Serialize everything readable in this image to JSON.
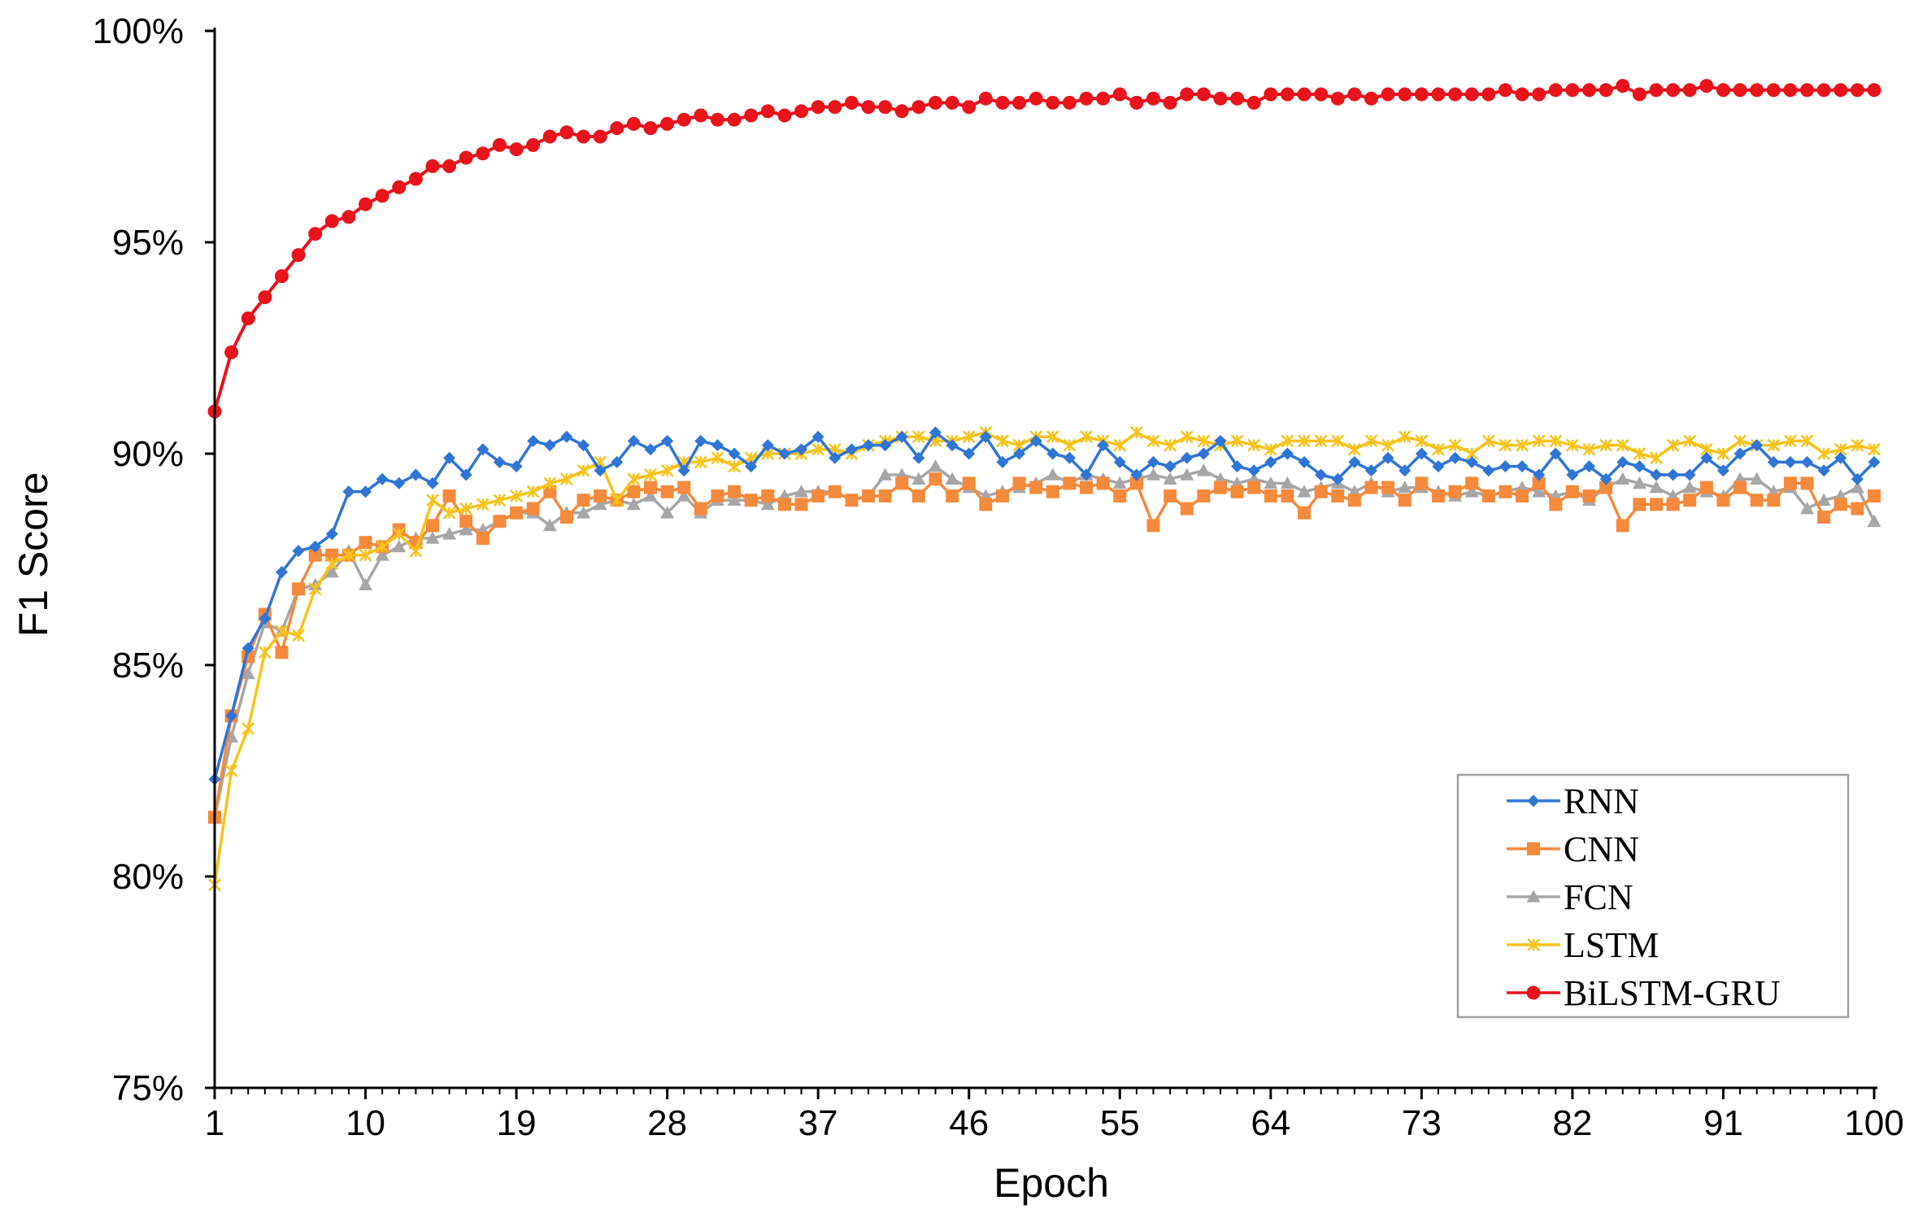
{
  "chart_data": {
    "type": "line",
    "xlabel": "Epoch",
    "ylabel": "F1 Score",
    "xlim": [
      1,
      100
    ],
    "ylim": [
      75,
      100
    ],
    "x_ticks": [
      "1",
      "10",
      "19",
      "28",
      "37",
      "46",
      "55",
      "64",
      "73",
      "82",
      "91",
      "100"
    ],
    "y_ticks": [
      "75%",
      "80%",
      "85%",
      "90%",
      "95%",
      "100%"
    ],
    "grid": false,
    "legend_position": "bottom-right",
    "colors": {
      "RNN": "#2f75d6",
      "CNN": "#f58a3c",
      "FCN": "#a6a6a6",
      "LSTM": "#f7c31b",
      "BiLSTM-GRU": "#e8131b"
    },
    "series": [
      {
        "name": "RNN",
        "marker": "diamond",
        "values": [
          82.3,
          83.8,
          85.4,
          86.1,
          87.2,
          87.7,
          87.8,
          88.1,
          89.1,
          89.1,
          89.4,
          89.3,
          89.5,
          89.3,
          89.9,
          89.5,
          90.1,
          89.8,
          89.7,
          90.3,
          90.2,
          90.4,
          90.2,
          89.6,
          89.8,
          90.3,
          90.1,
          90.3,
          89.6,
          90.3,
          90.2,
          90.0,
          89.7,
          90.2,
          90.0,
          90.1,
          90.4,
          89.9,
          90.1,
          90.2,
          90.2,
          90.4,
          89.9,
          90.5,
          90.2,
          90.0,
          90.4,
          89.8,
          90.0,
          90.3,
          90.0,
          89.9,
          89.5,
          90.2,
          89.8,
          89.5,
          89.8,
          89.7,
          89.9,
          90.0,
          90.3,
          89.7,
          89.6,
          89.8,
          90.0,
          89.8,
          89.5,
          89.4,
          89.8,
          89.6,
          89.9,
          89.6,
          90.0,
          89.7,
          89.9,
          89.8,
          89.6,
          89.7,
          89.7,
          89.5,
          90.0,
          89.5,
          89.7,
          89.4,
          89.8,
          89.7,
          89.5,
          89.5,
          89.5,
          89.9,
          89.6,
          90.0,
          90.2,
          89.8,
          89.8,
          89.8,
          89.6,
          89.9,
          89.4,
          89.8
        ]
      },
      {
        "name": "CNN",
        "marker": "square",
        "values": [
          81.4,
          83.8,
          85.2,
          86.2,
          85.3,
          86.8,
          87.6,
          87.6,
          87.6,
          87.9,
          87.8,
          88.2,
          87.9,
          88.3,
          89.0,
          88.4,
          88.0,
          88.4,
          88.6,
          88.7,
          89.1,
          88.5,
          88.9,
          89.0,
          88.9,
          89.1,
          89.2,
          89.1,
          89.2,
          88.7,
          89.0,
          89.1,
          88.9,
          89.0,
          88.8,
          88.8,
          89.0,
          89.1,
          88.9,
          89.0,
          89.0,
          89.3,
          89.0,
          89.4,
          89.0,
          89.3,
          88.8,
          89.0,
          89.3,
          89.2,
          89.1,
          89.3,
          89.2,
          89.3,
          89.0,
          89.3,
          88.3,
          89.0,
          88.7,
          89.0,
          89.2,
          89.1,
          89.2,
          89.0,
          89.0,
          88.6,
          89.1,
          89.0,
          88.9,
          89.2,
          89.2,
          88.9,
          89.3,
          89.0,
          89.1,
          89.3,
          89.0,
          89.1,
          89.0,
          89.3,
          88.8,
          89.1,
          89.0,
          89.2,
          88.3,
          88.8,
          88.8,
          88.8,
          88.9,
          89.2,
          88.9,
          89.2,
          88.9,
          88.9,
          89.3,
          89.3,
          88.5,
          88.8,
          88.7,
          89.0
        ]
      },
      {
        "name": "FCN",
        "marker": "triangle",
        "values": [
          81.4,
          83.3,
          84.8,
          86.0,
          85.8,
          86.8,
          86.9,
          87.2,
          87.7,
          86.9,
          87.6,
          87.8,
          88.0,
          88.0,
          88.1,
          88.2,
          88.2,
          88.4,
          88.6,
          88.6,
          88.3,
          88.6,
          88.6,
          88.8,
          88.9,
          88.8,
          89.0,
          88.6,
          89.0,
          88.6,
          88.9,
          88.9,
          88.9,
          88.8,
          89.0,
          89.1,
          89.1,
          89.1,
          88.9,
          89.0,
          89.5,
          89.5,
          89.4,
          89.7,
          89.4,
          89.2,
          89.0,
          89.1,
          89.2,
          89.3,
          89.5,
          89.3,
          89.5,
          89.4,
          89.3,
          89.4,
          89.5,
          89.4,
          89.5,
          89.6,
          89.4,
          89.3,
          89.4,
          89.3,
          89.3,
          89.1,
          89.2,
          89.3,
          89.1,
          89.3,
          89.1,
          89.2,
          89.2,
          89.1,
          89.0,
          89.1,
          89.0,
          89.1,
          89.2,
          89.1,
          89.0,
          89.1,
          88.9,
          89.2,
          89.4,
          89.3,
          89.2,
          89.0,
          89.2,
          89.1,
          89.0,
          89.4,
          89.4,
          89.1,
          89.2,
          88.7,
          88.9,
          89.0,
          89.2,
          88.4
        ]
      },
      {
        "name": "LSTM",
        "marker": "x",
        "values": [
          79.8,
          82.5,
          83.5,
          85.3,
          85.8,
          85.7,
          86.8,
          87.4,
          87.6,
          87.6,
          87.8,
          88.1,
          87.7,
          88.9,
          88.6,
          88.7,
          88.8,
          88.9,
          89.0,
          89.1,
          89.3,
          89.4,
          89.6,
          89.8,
          88.9,
          89.4,
          89.5,
          89.6,
          89.8,
          89.8,
          89.9,
          89.7,
          89.9,
          90.0,
          90.0,
          90.0,
          90.1,
          90.1,
          90.0,
          90.2,
          90.3,
          90.4,
          90.4,
          90.3,
          90.3,
          90.4,
          90.5,
          90.3,
          90.2,
          90.4,
          90.4,
          90.2,
          90.4,
          90.3,
          90.2,
          90.5,
          90.3,
          90.2,
          90.4,
          90.3,
          90.2,
          90.3,
          90.2,
          90.1,
          90.3,
          90.3,
          90.3,
          90.3,
          90.1,
          90.3,
          90.2,
          90.4,
          90.3,
          90.1,
          90.2,
          90.0,
          90.3,
          90.2,
          90.2,
          90.3,
          90.3,
          90.2,
          90.1,
          90.2,
          90.2,
          90.0,
          89.9,
          90.2,
          90.3,
          90.1,
          90.0,
          90.3,
          90.2,
          90.2,
          90.3,
          90.3,
          90.0,
          90.1,
          90.2,
          90.1
        ]
      },
      {
        "name": "BiLSTM-GRU",
        "marker": "circle",
        "values": [
          91.0,
          92.4,
          93.2,
          93.7,
          94.2,
          94.7,
          95.2,
          95.5,
          95.6,
          95.9,
          96.1,
          96.3,
          96.5,
          96.8,
          96.8,
          97.0,
          97.1,
          97.3,
          97.2,
          97.3,
          97.5,
          97.6,
          97.5,
          97.5,
          97.7,
          97.8,
          97.7,
          97.8,
          97.9,
          98.0,
          97.9,
          97.9,
          98.0,
          98.1,
          98.0,
          98.1,
          98.2,
          98.2,
          98.3,
          98.2,
          98.2,
          98.1,
          98.2,
          98.3,
          98.3,
          98.2,
          98.4,
          98.3,
          98.3,
          98.4,
          98.3,
          98.3,
          98.4,
          98.4,
          98.5,
          98.3,
          98.4,
          98.3,
          98.5,
          98.5,
          98.4,
          98.4,
          98.3,
          98.5,
          98.5,
          98.5,
          98.5,
          98.4,
          98.5,
          98.4,
          98.5,
          98.5,
          98.5,
          98.5,
          98.5,
          98.5,
          98.5,
          98.6,
          98.5,
          98.5,
          98.6,
          98.6,
          98.6,
          98.6,
          98.7,
          98.5,
          98.6,
          98.6,
          98.6,
          98.7,
          98.6,
          98.6,
          98.6,
          98.6,
          98.6,
          98.6,
          98.6,
          98.6,
          98.6,
          98.6
        ]
      }
    ]
  }
}
